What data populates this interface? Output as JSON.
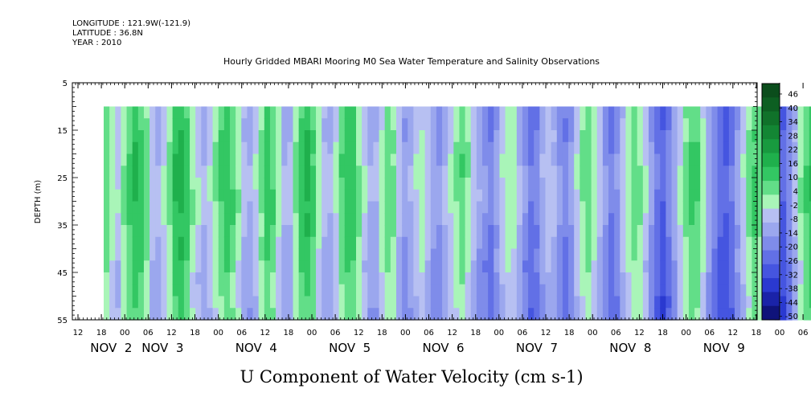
{
  "header": {
    "lines": [
      "LONGITUDE : 121.9W(-121.9)",
      "LATITUDE : 36.8N",
      "YEAR : 2010"
    ]
  },
  "chart_data": {
    "type": "heatmap",
    "title": "Hourly Gridded MBARI Mooring M0 Sea Water Temperature and Salinity Observations",
    "xlabel": "U Component of Water Velocity (cm s-1)",
    "ylabel": "DEPTH (m)",
    "ylim": [
      5,
      55
    ],
    "y_reversed": true,
    "y_ticks": [
      5,
      15,
      25,
      35,
      45,
      55
    ],
    "x_hour_ticks": [
      "12",
      "18",
      "00",
      "06",
      "12",
      "18",
      "00",
      "06",
      "12",
      "18",
      "00",
      "06",
      "12",
      "18",
      "00",
      "06",
      "12",
      "18",
      "00",
      "06",
      "12",
      "18",
      "00",
      "06",
      "12",
      "18",
      "00",
      "06",
      "12",
      "18",
      "00",
      "06",
      "12"
    ],
    "x_date_labels": [
      "NOV  2",
      "NOV  3",
      "NOV  4",
      "NOV  5",
      "NOV  6",
      "NOV  7",
      "NOV  8",
      "NOV  9"
    ],
    "x_date_label_tick_index": [
      0.8,
      3.0,
      7.0,
      11.0,
      15.0,
      19.0,
      23.0,
      27.0
    ],
    "data_depth_range": [
      10,
      55
    ],
    "data_start_tick": 1.1,
    "data_end_tick": 32.0,
    "colorbar": {
      "labels": [
        "46",
        "40",
        "34",
        "28",
        "22",
        "16",
        "10",
        "4",
        "-2",
        "-8",
        "-14",
        "-20",
        "-26",
        "-32",
        "-38",
        "-44",
        "-50"
      ],
      "levels": [
        {
          "min": 46,
          "max": 52,
          "color": "#0b4d1c"
        },
        {
          "min": 40,
          "max": 46,
          "color": "#0d5f22"
        },
        {
          "min": 34,
          "max": 40,
          "color": "#10722a"
        },
        {
          "min": 28,
          "max": 34,
          "color": "#138634"
        },
        {
          "min": 22,
          "max": 28,
          "color": "#189a3f"
        },
        {
          "min": 16,
          "max": 22,
          "color": "#1fb04c"
        },
        {
          "min": 10,
          "max": 16,
          "color": "#33c763"
        },
        {
          "min": 4,
          "max": 10,
          "color": "#62de88"
        },
        {
          "min": -2,
          "max": 4,
          "color": "#a9f5b8"
        },
        {
          "min": -8,
          "max": -2,
          "color": "#b7c0f2"
        },
        {
          "min": -14,
          "max": -8,
          "color": "#9ba7ee"
        },
        {
          "min": -20,
          "max": -14,
          "color": "#7f8cea"
        },
        {
          "min": -26,
          "max": -20,
          "color": "#6270e6"
        },
        {
          "min": -32,
          "max": -26,
          "color": "#4555e0"
        },
        {
          "min": -38,
          "max": -32,
          "color": "#2a39d0"
        },
        {
          "min": -44,
          "max": -38,
          "color": "#1a23a8"
        },
        {
          "min": -50,
          "max": -44,
          "color": "#0f137a"
        }
      ]
    },
    "time_profile": [
      6,
      -2,
      -6,
      2,
      9,
      14,
      10,
      3,
      -6,
      -10,
      -4,
      4,
      12,
      15,
      9,
      1,
      -5,
      -10,
      -6,
      2,
      8,
      12,
      7,
      0,
      -8,
      -12,
      -6,
      3,
      10,
      7,
      -2,
      -10,
      -8,
      3,
      11,
      14,
      8,
      -1,
      -8,
      -10,
      -3,
      6,
      12,
      10,
      2,
      -6,
      -12,
      -10,
      -2,
      5,
      2,
      -8,
      -14,
      -12,
      -6,
      -2,
      -8,
      -14,
      -16,
      -10,
      -4,
      2,
      6,
      1,
      -6,
      -13,
      -18,
      -20,
      -14,
      -6,
      0,
      -2,
      -10,
      -18,
      -24,
      -20,
      -12,
      -6,
      -10,
      -16,
      -20,
      -14,
      -6,
      2,
      6,
      0,
      -8,
      -16,
      -22,
      -18,
      -8,
      0,
      6,
      2,
      -6,
      -14,
      -24,
      -28,
      -22,
      -12,
      -4,
      4,
      10,
      8,
      -2,
      -12,
      -20,
      -26,
      -30,
      -24,
      -14,
      -6,
      2,
      8,
      4,
      -6,
      -16,
      -24,
      -28,
      -20,
      -10,
      0,
      6,
      12,
      10,
      4
    ],
    "depth_modifier": [
      0,
      0,
      1,
      2,
      3,
      4,
      4,
      4,
      3,
      2,
      1,
      0,
      0,
      -1,
      -2,
      -2,
      -3,
      -3
    ]
  }
}
